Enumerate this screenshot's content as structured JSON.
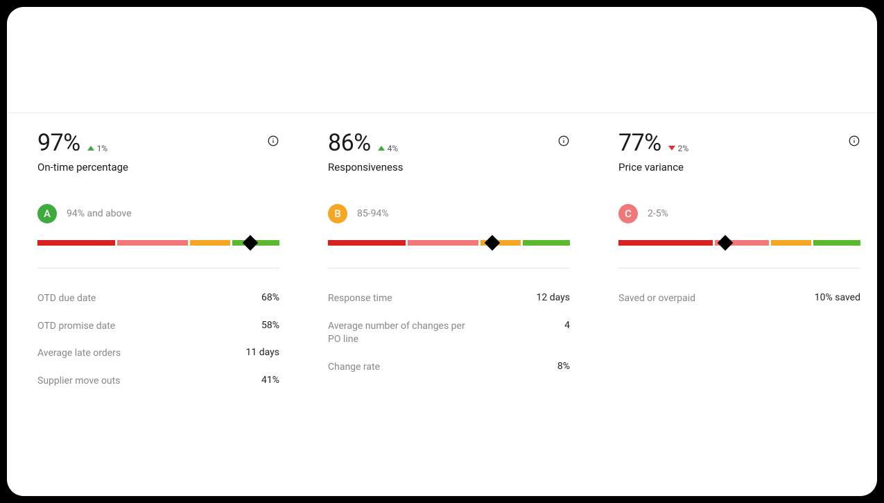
{
  "colors": {
    "trend_up": "#3dab3d",
    "trend_down": "#e03131",
    "gauge_red": "#db1f1f",
    "gauge_pink": "#f07878",
    "gauge_orange": "#f5a623",
    "gauge_green": "#5cb82c"
  },
  "cards": [
    {
      "id": "on-time",
      "value": "97%",
      "trend_dir": "up",
      "trend_text": "1%",
      "title": "On-time percentage",
      "grade_letter": "A",
      "grade_color": "#3dab3d",
      "grade_range": "94% and above",
      "gauge_segments": [
        {
          "flex": 33,
          "color": "#db1f1f"
        },
        {
          "flex": 30,
          "color": "#f07878"
        },
        {
          "flex": 17,
          "color": "#f5a623"
        },
        {
          "flex": 20,
          "color": "#5cb82c"
        }
      ],
      "marker_pct": 88,
      "stats": [
        {
          "label": "OTD due date",
          "value": "68%"
        },
        {
          "label": "OTD promise date",
          "value": "58%"
        },
        {
          "label": "Average late orders",
          "value": "11 days"
        },
        {
          "label": "Supplier move outs",
          "value": "41%"
        }
      ]
    },
    {
      "id": "responsiveness",
      "value": "86%",
      "trend_dir": "up",
      "trend_text": "4%",
      "title": "Responsiveness",
      "grade_letter": "B",
      "grade_color": "#f5a623",
      "grade_range": "85-94%",
      "gauge_segments": [
        {
          "flex": 33,
          "color": "#db1f1f"
        },
        {
          "flex": 30,
          "color": "#f07878"
        },
        {
          "flex": 17,
          "color": "#f5a623"
        },
        {
          "flex": 20,
          "color": "#5cb82c"
        }
      ],
      "marker_pct": 68,
      "stats": [
        {
          "label": "Response time",
          "value": "12 days"
        },
        {
          "label": "Average number of changes per PO line",
          "value": "4"
        },
        {
          "label": "Change rate",
          "value": "8%"
        }
      ]
    },
    {
      "id": "price-variance",
      "value": "77%",
      "trend_dir": "down",
      "trend_text": "2%",
      "title": "Price variance",
      "grade_letter": "C",
      "grade_color": "#f07878",
      "grade_range": "2-5%",
      "gauge_segments": [
        {
          "flex": 40,
          "color": "#db1f1f"
        },
        {
          "flex": 23,
          "color": "#f07878"
        },
        {
          "flex": 17,
          "color": "#f5a623"
        },
        {
          "flex": 20,
          "color": "#5cb82c"
        }
      ],
      "marker_pct": 44,
      "stats": [
        {
          "label": "Saved or overpaid",
          "value": "10% saved"
        }
      ]
    }
  ]
}
